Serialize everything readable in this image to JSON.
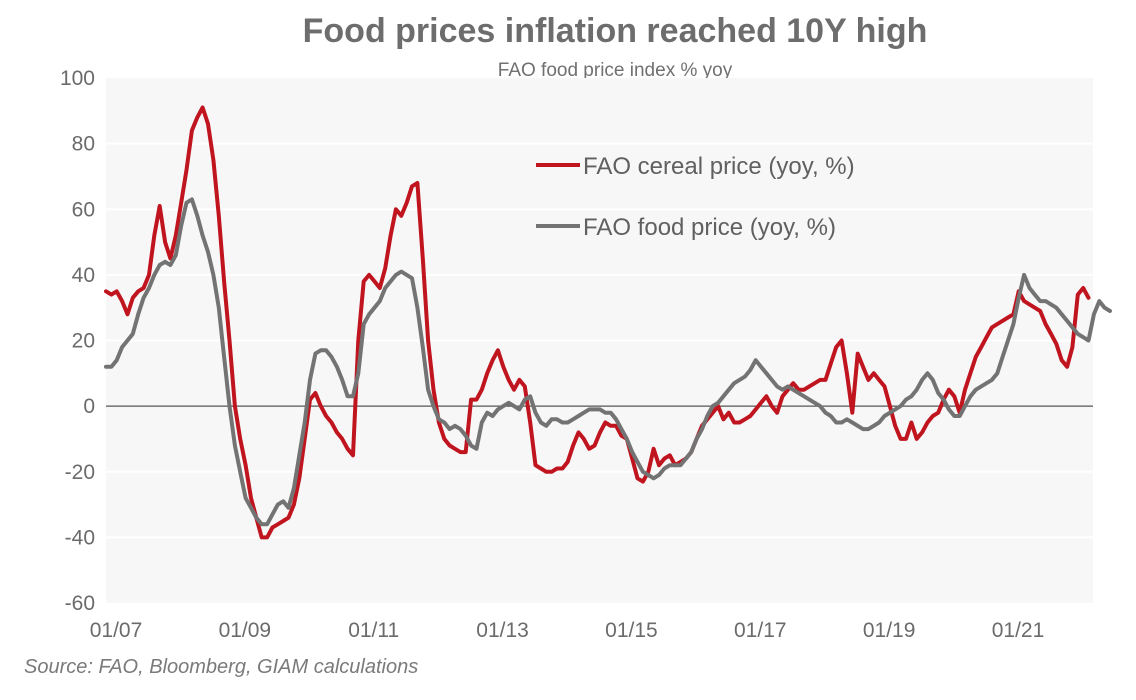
{
  "chart_data": {
    "type": "line",
    "title": "Food prices inflation reached 10Y high",
    "subtitle": "FAO food price index % yoy",
    "xlabel": "",
    "ylabel": "",
    "ylim": [
      -60,
      100
    ],
    "yticks": [
      100,
      80,
      60,
      40,
      20,
      0,
      -20,
      -40,
      -60
    ],
    "ytick_labels": [
      "100",
      "80",
      "60",
      "40",
      "20",
      "0",
      "-20",
      "-40",
      "-60"
    ],
    "x_start": "2007-01",
    "x_frequency": "monthly",
    "xticks": [
      "01/07",
      "01/09",
      "01/11",
      "01/13",
      "01/15",
      "01/17",
      "01/19",
      "01/21"
    ],
    "xtick_month_index": [
      0,
      24,
      48,
      72,
      96,
      120,
      144,
      168
    ],
    "grid": true,
    "zero_line": true,
    "legend_position": "upper-right-center",
    "series": [
      {
        "name": "FAO cereal price (yoy, %)",
        "color": "#c0141f",
        "values": [
          35,
          34,
          35,
          32,
          28,
          33,
          35,
          36,
          40,
          52,
          61,
          50,
          45,
          52,
          62,
          72,
          84,
          88,
          91,
          86,
          75,
          58,
          38,
          20,
          0,
          -10,
          -18,
          -28,
          -34,
          -40,
          -40,
          -37,
          -36,
          -35,
          -34,
          -30,
          -22,
          -10,
          2,
          4,
          0,
          -3,
          -5,
          -8,
          -10,
          -13,
          -15,
          20,
          38,
          40,
          38,
          36,
          42,
          52,
          60,
          58,
          62,
          67,
          68,
          45,
          20,
          5,
          -5,
          -10,
          -12,
          -13,
          -14,
          -14,
          2,
          2,
          5,
          10,
          14,
          17,
          12,
          8,
          5,
          8,
          6,
          -5,
          -18,
          -19,
          -20,
          -20,
          -19,
          -19,
          -17,
          -12,
          -8,
          -10,
          -13,
          -12,
          -8,
          -5,
          -6,
          -6,
          -9,
          -10,
          -16,
          -22,
          -23,
          -20,
          -13,
          -18,
          -16,
          -15,
          -18,
          -17,
          -16,
          -14,
          -10,
          -6,
          -4,
          -2,
          0,
          -4,
          -2,
          -5,
          -5,
          -4,
          -3,
          -1,
          1,
          3,
          0,
          -2,
          3,
          5,
          7,
          5,
          5,
          6,
          7,
          8,
          8,
          13,
          18,
          20,
          10,
          -2,
          16,
          12,
          8,
          10,
          8,
          6,
          0,
          -6,
          -10,
          -10,
          -5,
          -10,
          -8,
          -5,
          -3,
          -2,
          2,
          5,
          3,
          -2,
          5,
          10,
          15,
          18,
          21,
          24,
          25,
          26,
          27,
          28,
          35,
          32,
          31,
          30,
          29,
          25,
          22,
          19,
          14,
          12,
          18,
          34,
          36,
          33
        ]
      },
      {
        "name": "FAO food price (yoy, %)",
        "color": "#737373",
        "values": [
          12,
          12,
          14,
          18,
          20,
          22,
          28,
          33,
          36,
          40,
          43,
          44,
          43,
          46,
          55,
          62,
          63,
          58,
          52,
          47,
          40,
          30,
          15,
          0,
          -12,
          -20,
          -28,
          -31,
          -34,
          -36,
          -36,
          -33,
          -30,
          -29,
          -31,
          -25,
          -15,
          -5,
          8,
          16,
          17,
          17,
          15,
          12,
          8,
          3,
          3,
          10,
          25,
          28,
          30,
          32,
          36,
          38,
          40,
          41,
          40,
          39,
          30,
          18,
          5,
          0,
          -4,
          -5,
          -7,
          -6,
          -7,
          -9,
          -12,
          -13,
          -5,
          -2,
          -3,
          -1,
          0,
          1,
          0,
          -1,
          2,
          3,
          -2,
          -5,
          -6,
          -4,
          -4,
          -5,
          -5,
          -4,
          -3,
          -2,
          -1,
          -1,
          -1,
          -2,
          -2,
          -4,
          -7,
          -10,
          -14,
          -17,
          -20,
          -21,
          -22,
          -21,
          -19,
          -18,
          -18,
          -18,
          -16,
          -14,
          -10,
          -7,
          -3,
          0,
          1,
          3,
          5,
          7,
          8,
          9,
          11,
          14,
          12,
          10,
          8,
          6,
          5,
          6,
          5,
          4,
          3,
          2,
          1,
          0,
          -2,
          -3,
          -5,
          -5,
          -4,
          -5,
          -6,
          -7,
          -7,
          -6,
          -5,
          -3,
          -2,
          -1,
          0,
          2,
          3,
          5,
          8,
          10,
          8,
          4,
          2,
          -1,
          -3,
          -3,
          0,
          3,
          5,
          6,
          7,
          8,
          10,
          15,
          20,
          25,
          33,
          40,
          36,
          34,
          32,
          32,
          31,
          30,
          28,
          26,
          24,
          22,
          21,
          20,
          28,
          32,
          30,
          29
        ]
      }
    ]
  },
  "footer": {
    "source": "Source: FAO, Bloomberg, GIAM calculations"
  }
}
